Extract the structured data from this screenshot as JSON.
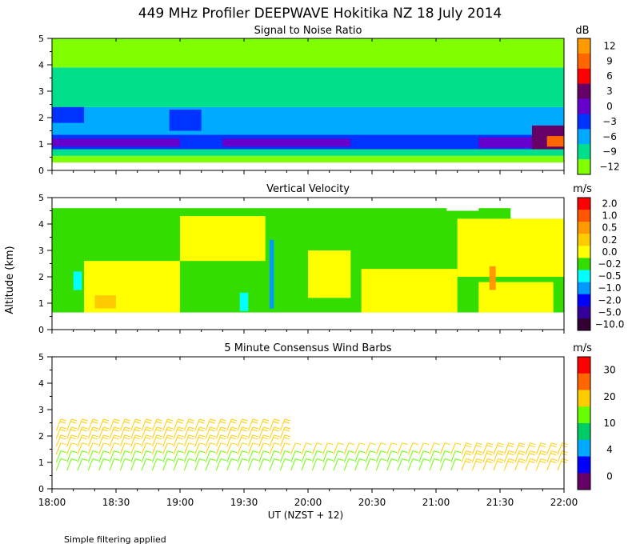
{
  "title": "449 MHz Profiler DEEPWAVE Hokitika NZ 18 July 2014",
  "ylabel": "Altitude (km)",
  "xlabel": "UT  (NZST + 12)",
  "footnote": "Simple filtering applied",
  "chart_data": [
    {
      "type": "heatmap",
      "title": "Signal to Noise Ratio",
      "unit": "dB",
      "xlim": [
        0,
        240
      ],
      "ylim": [
        0,
        5
      ],
      "yticks": [
        0,
        1,
        2,
        3,
        4,
        5
      ],
      "colorbar": {
        "labels": [
          "12",
          "9",
          "6",
          "3",
          "0",
          "−3",
          "−6",
          "−9",
          "−12"
        ],
        "levels": [
          12,
          9,
          6,
          3,
          0,
          -3,
          -6,
          -9,
          -12
        ],
        "colors": [
          "#ff9900",
          "#ff6600",
          "#ff0000",
          "#660066",
          "#6600cc",
          "#0033ff",
          "#00aaff",
          "#00e08a",
          "#80ff00"
        ]
      },
      "layers": [
        {
          "y0": 0.3,
          "y1": 0.55,
          "value": -12
        },
        {
          "y0": 0.55,
          "y1": 0.8,
          "value": -9
        },
        {
          "y0": 0.8,
          "y1": 1.35,
          "value": -3
        },
        {
          "y0": 1.35,
          "y1": 2.4,
          "value": -6
        },
        {
          "y0": 2.4,
          "y1": 3.9,
          "value": -9
        },
        {
          "y0": 3.9,
          "y1": 5.0,
          "value": -12
        }
      ],
      "patches": [
        {
          "x0": 0,
          "x1": 15,
          "y0": 1.8,
          "y1": 2.4,
          "value": -3
        },
        {
          "x0": 55,
          "x1": 70,
          "y0": 1.5,
          "y1": 2.3,
          "value": -3
        },
        {
          "x0": 0,
          "x1": 60,
          "y0": 0.9,
          "y1": 1.2,
          "value": 0
        },
        {
          "x0": 80,
          "x1": 140,
          "y0": 0.9,
          "y1": 1.2,
          "value": 0
        },
        {
          "x0": 200,
          "x1": 225,
          "y0": 0.85,
          "y1": 1.25,
          "value": 0
        },
        {
          "x0": 225,
          "x1": 240,
          "y0": 0.8,
          "y1": 1.7,
          "value": 3
        },
        {
          "x0": 232,
          "x1": 240,
          "y0": 0.9,
          "y1": 1.3,
          "value": 9
        }
      ],
      "gaps": []
    },
    {
      "type": "heatmap",
      "title": "Vertical Velocity",
      "unit": "m/s",
      "xlim": [
        0,
        240
      ],
      "ylim": [
        0,
        5
      ],
      "yticks": [
        0,
        1,
        2,
        3,
        4,
        5
      ],
      "colorbar": {
        "labels": [
          "2.0",
          "1.0",
          "0.5",
          "0.2",
          "0.0",
          "−0.2",
          "−0.5",
          "−1.0",
          "−2.0",
          "−5.0",
          "−10.0"
        ],
        "levels": [
          2.0,
          1.0,
          0.5,
          0.2,
          0.0,
          -0.2,
          -0.5,
          -1.0,
          -2.0,
          -5.0,
          -10.0
        ],
        "colors": [
          "#ff0000",
          "#ff5500",
          "#ff9900",
          "#ffcc00",
          "#ffff00",
          "#33dd00",
          "#00ffff",
          "#0099ff",
          "#0000ff",
          "#330099",
          "#330033"
        ]
      },
      "layers": [
        {
          "y0": 0.65,
          "y1": 4.6,
          "value": -0.2
        }
      ],
      "patches": [
        {
          "x0": 15,
          "x1": 60,
          "y0": 0.65,
          "y1": 2.6,
          "value": 0.0
        },
        {
          "x0": 60,
          "x1": 100,
          "y0": 2.6,
          "y1": 4.3,
          "value": 0.0
        },
        {
          "x0": 120,
          "x1": 140,
          "y0": 1.2,
          "y1": 3.0,
          "value": 0.0
        },
        {
          "x0": 145,
          "x1": 190,
          "y0": 0.65,
          "y1": 2.3,
          "value": 0.0
        },
        {
          "x0": 190,
          "x1": 240,
          "y0": 2.0,
          "y1": 4.2,
          "value": 0.0
        },
        {
          "x0": 200,
          "x1": 235,
          "y0": 0.65,
          "y1": 1.8,
          "value": 0.0
        },
        {
          "x0": 10,
          "x1": 14,
          "y0": 1.5,
          "y1": 2.2,
          "value": -0.5
        },
        {
          "x0": 88,
          "x1": 92,
          "y0": 0.7,
          "y1": 1.4,
          "value": -0.5
        },
        {
          "x0": 102,
          "x1": 104,
          "y0": 0.8,
          "y1": 3.4,
          "value": -1.0
        },
        {
          "x0": 20,
          "x1": 30,
          "y0": 0.8,
          "y1": 1.3,
          "value": 0.2
        },
        {
          "x0": 205,
          "x1": 208,
          "y0": 1.5,
          "y1": 2.4,
          "value": 0.5
        }
      ],
      "gaps": [
        {
          "x0": 185,
          "x1": 200,
          "y0": 4.5,
          "y1": 5.0
        },
        {
          "x0": 215,
          "x1": 240,
          "y0": 4.2,
          "y1": 5.0
        }
      ]
    },
    {
      "type": "wind-barbs",
      "title": "5 Minute Consensus Wind Barbs",
      "unit": "m/s",
      "xlim": [
        0,
        240
      ],
      "ylim": [
        0,
        5
      ],
      "yticks": [
        0,
        1,
        2,
        3,
        4,
        5
      ],
      "colorbar": {
        "labels": [
          "30",
          "20",
          "10",
          "4",
          "0"
        ],
        "levels": [
          30,
          20,
          10,
          4,
          0
        ],
        "colors": [
          "#ff0000",
          "#ff6600",
          "#ffcc00",
          "#66ff00",
          "#00cc66",
          "#00aaff",
          "#0000ff",
          "#660066"
        ]
      },
      "wind_speed_by_altitude": [
        {
          "altitude": 0.7,
          "speed": 3
        },
        {
          "altitude": 1.0,
          "speed": 5
        },
        {
          "altitude": 1.3,
          "speed": 7
        },
        {
          "altitude": 1.6,
          "speed": 9
        },
        {
          "altitude": 1.9,
          "speed": 11
        },
        {
          "altitude": 2.2,
          "speed": 12
        }
      ],
      "barb_time_range": [
        0,
        238
      ],
      "barb_time_step": 5,
      "upper_layer_end_time": 110,
      "late_layer_speed": 10
    }
  ],
  "xaxis": {
    "ticks": [
      0,
      30,
      60,
      90,
      120,
      150,
      180,
      210,
      240
    ],
    "tick_labels": [
      "18:00",
      "18:30",
      "19:00",
      "19:30",
      "20:00",
      "20:30",
      "21:00",
      "21:30",
      "22:00"
    ]
  }
}
